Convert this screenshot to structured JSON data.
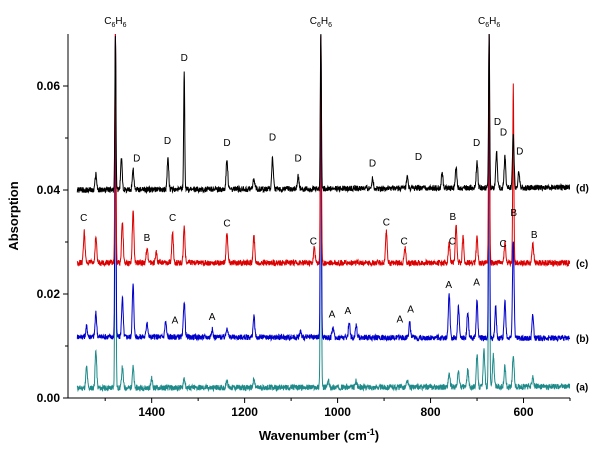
{
  "chart_data": {
    "type": "line",
    "title": "",
    "xlabel": "Wavenumber (cm",
    "xlabel_sup": "-1",
    "xlabel_close": ")",
    "ylabel": "Absorption",
    "xlim": [
      1580,
      500
    ],
    "ylim": [
      0,
      0.07
    ],
    "x_ticks": [
      {
        "value": 1400,
        "label": "1400"
      },
      {
        "value": 1200,
        "label": "1200"
      },
      {
        "value": 1000,
        "label": "1000"
      },
      {
        "value": 800,
        "label": "800"
      },
      {
        "value": 600,
        "label": "600"
      }
    ],
    "y_ticks": [
      {
        "value": 0.0,
        "label": "0.00"
      },
      {
        "value": 0.02,
        "label": "0.02"
      },
      {
        "value": 0.04,
        "label": "0.04"
      },
      {
        "value": 0.06,
        "label": "0.06"
      }
    ],
    "grid": false,
    "species_labels": [
      {
        "x": 1478,
        "base": "C",
        "sub": "6",
        "base2": "H",
        "sub2": "6"
      },
      {
        "x": 1036,
        "base": "C",
        "sub": "6",
        "base2": "H",
        "sub2": "6"
      },
      {
        "x": 674,
        "base": "C",
        "sub": "6",
        "base2": "H",
        "sub2": "6"
      }
    ],
    "series": [
      {
        "name": "(a)",
        "color": "#1f8a8a",
        "baseline": 0.0019,
        "end_value": 0.0022,
        "peaks": [
          {
            "x": 1540,
            "h": 0.004
          },
          {
            "x": 1520,
            "h": 0.0072
          },
          {
            "x": 1478,
            "h": 0.068
          },
          {
            "x": 1463,
            "h": 0.004
          },
          {
            "x": 1440,
            "h": 0.004
          },
          {
            "x": 1400,
            "h": 0.0018
          },
          {
            "x": 1330,
            "h": 0.002
          },
          {
            "x": 1238,
            "h": 0.0016
          },
          {
            "x": 1180,
            "h": 0.0015
          },
          {
            "x": 1036,
            "h": 0.068
          },
          {
            "x": 1020,
            "h": 0.0012
          },
          {
            "x": 960,
            "h": 0.0012
          },
          {
            "x": 850,
            "h": 0.0012
          },
          {
            "x": 760,
            "h": 0.0026
          },
          {
            "x": 740,
            "h": 0.003
          },
          {
            "x": 720,
            "h": 0.0032
          },
          {
            "x": 700,
            "h": 0.006
          },
          {
            "x": 685,
            "h": 0.007
          },
          {
            "x": 674,
            "h": 0.068
          },
          {
            "x": 665,
            "h": 0.006
          },
          {
            "x": 640,
            "h": 0.004
          },
          {
            "x": 622,
            "h": 0.0062
          },
          {
            "x": 580,
            "h": 0.0022
          }
        ]
      },
      {
        "name": "(b)",
        "color": "#0000cc",
        "baseline": 0.0118,
        "end_value": 0.0115,
        "peaks": [
          {
            "x": 1540,
            "h": 0.002
          },
          {
            "x": 1520,
            "h": 0.0045
          },
          {
            "x": 1478,
            "h": 0.058
          },
          {
            "x": 1463,
            "h": 0.0075
          },
          {
            "x": 1440,
            "h": 0.01
          },
          {
            "x": 1410,
            "h": 0.003
          },
          {
            "x": 1370,
            "h": 0.003
          },
          {
            "x": 1330,
            "h": 0.007
          },
          {
            "x": 1270,
            "h": 0.0015
          },
          {
            "x": 1238,
            "h": 0.002
          },
          {
            "x": 1180,
            "h": 0.004
          },
          {
            "x": 1080,
            "h": 0.0012
          },
          {
            "x": 1036,
            "h": 0.058
          },
          {
            "x": 1010,
            "h": 0.002
          },
          {
            "x": 975,
            "h": 0.003
          },
          {
            "x": 960,
            "h": 0.0025
          },
          {
            "x": 845,
            "h": 0.003
          },
          {
            "x": 760,
            "h": 0.0085
          },
          {
            "x": 740,
            "h": 0.006
          },
          {
            "x": 720,
            "h": 0.005
          },
          {
            "x": 700,
            "h": 0.007
          },
          {
            "x": 674,
            "h": 0.058
          },
          {
            "x": 660,
            "h": 0.006
          },
          {
            "x": 640,
            "h": 0.007
          },
          {
            "x": 622,
            "h": 0.019
          },
          {
            "x": 580,
            "h": 0.0045
          }
        ]
      },
      {
        "name": "(c)",
        "color": "#dd0000",
        "baseline": 0.026,
        "end_value": 0.026,
        "peaks": [
          {
            "x": 1545,
            "h": 0.006
          },
          {
            "x": 1520,
            "h": 0.005
          },
          {
            "x": 1478,
            "h": 0.044
          },
          {
            "x": 1463,
            "h": 0.008
          },
          {
            "x": 1440,
            "h": 0.01
          },
          {
            "x": 1410,
            "h": 0.003
          },
          {
            "x": 1390,
            "h": 0.002
          },
          {
            "x": 1355,
            "h": 0.006
          },
          {
            "x": 1330,
            "h": 0.007
          },
          {
            "x": 1238,
            "h": 0.006
          },
          {
            "x": 1180,
            "h": 0.005
          },
          {
            "x": 1050,
            "h": 0.003
          },
          {
            "x": 1036,
            "h": 0.044
          },
          {
            "x": 895,
            "h": 0.006
          },
          {
            "x": 855,
            "h": 0.003
          },
          {
            "x": 760,
            "h": 0.004
          },
          {
            "x": 745,
            "h": 0.007
          },
          {
            "x": 730,
            "h": 0.005
          },
          {
            "x": 700,
            "h": 0.005
          },
          {
            "x": 674,
            "h": 0.044
          },
          {
            "x": 640,
            "h": 0.004
          },
          {
            "x": 622,
            "h": 0.034
          },
          {
            "x": 580,
            "h": 0.004
          }
        ]
      },
      {
        "name": "(d)",
        "color": "#000000",
        "baseline": 0.04,
        "end_value": 0.0405,
        "peaks": [
          {
            "x": 1520,
            "h": 0.003
          },
          {
            "x": 1478,
            "h": 0.03
          },
          {
            "x": 1465,
            "h": 0.006
          },
          {
            "x": 1440,
            "h": 0.004
          },
          {
            "x": 1365,
            "h": 0.006
          },
          {
            "x": 1330,
            "h": 0.023
          },
          {
            "x": 1238,
            "h": 0.006
          },
          {
            "x": 1180,
            "h": 0.002
          },
          {
            "x": 1140,
            "h": 0.006
          },
          {
            "x": 1085,
            "h": 0.0025
          },
          {
            "x": 1036,
            "h": 0.03
          },
          {
            "x": 925,
            "h": 0.002
          },
          {
            "x": 850,
            "h": 0.002
          },
          {
            "x": 775,
            "h": 0.003
          },
          {
            "x": 745,
            "h": 0.004
          },
          {
            "x": 700,
            "h": 0.005
          },
          {
            "x": 674,
            "h": 0.03
          },
          {
            "x": 658,
            "h": 0.007
          },
          {
            "x": 640,
            "h": 0.006
          },
          {
            "x": 622,
            "h": 0.01
          },
          {
            "x": 610,
            "h": 0.003
          }
        ]
      }
    ],
    "annotations": [
      {
        "text": "D",
        "x": 1330,
        "y": 0.0648
      },
      {
        "text": "D",
        "x": 1432,
        "y": 0.0455
      },
      {
        "text": "D",
        "x": 1366,
        "y": 0.0488
      },
      {
        "text": "D",
        "x": 1238,
        "y": 0.0485
      },
      {
        "text": "D",
        "x": 1140,
        "y": 0.0495
      },
      {
        "text": "D",
        "x": 1085,
        "y": 0.0455
      },
      {
        "text": "D",
        "x": 925,
        "y": 0.0445
      },
      {
        "text": "D",
        "x": 826,
        "y": 0.0458
      },
      {
        "text": "D",
        "x": 701,
        "y": 0.0485
      },
      {
        "text": "D",
        "x": 656,
        "y": 0.0525
      },
      {
        "text": "D",
        "x": 643,
        "y": 0.0505
      },
      {
        "text": "D",
        "x": 608,
        "y": 0.0468
      },
      {
        "text": "C",
        "x": 1546,
        "y": 0.034
      },
      {
        "text": "C",
        "x": 1355,
        "y": 0.034
      },
      {
        "text": "C",
        "x": 1238,
        "y": 0.033
      },
      {
        "text": "C",
        "x": 1052,
        "y": 0.0295
      },
      {
        "text": "C",
        "x": 895,
        "y": 0.0332
      },
      {
        "text": "C",
        "x": 857,
        "y": 0.0295
      },
      {
        "text": "C",
        "x": 753,
        "y": 0.0295
      },
      {
        "text": "C",
        "x": 644,
        "y": 0.029
      },
      {
        "text": "B",
        "x": 1410,
        "y": 0.0302
      },
      {
        "text": "B",
        "x": 752,
        "y": 0.0342
      },
      {
        "text": "B",
        "x": 621,
        "y": 0.035
      },
      {
        "text": "B",
        "x": 577,
        "y": 0.0308
      },
      {
        "text": "A",
        "x": 1270,
        "y": 0.015
      },
      {
        "text": "A",
        "x": 1350,
        "y": 0.0143
      },
      {
        "text": "A",
        "x": 1012,
        "y": 0.0155
      },
      {
        "text": "A",
        "x": 978,
        "y": 0.0162
      },
      {
        "text": "A",
        "x": 866,
        "y": 0.0145
      },
      {
        "text": "A",
        "x": 843,
        "y": 0.0164
      },
      {
        "text": "A",
        "x": 761,
        "y": 0.0212
      },
      {
        "text": "A",
        "x": 701,
        "y": 0.0216
      }
    ]
  }
}
